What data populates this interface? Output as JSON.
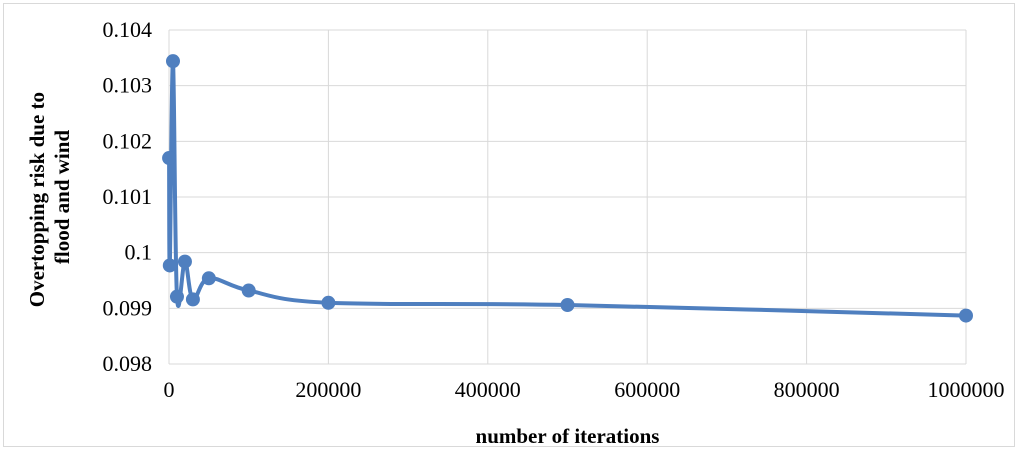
{
  "chart_data": {
    "type": "line",
    "title": "",
    "xlabel": "number of iterations",
    "ylabel_lines": [
      "Overtopping risk due to",
      "flood and wind"
    ],
    "xlim": [
      0,
      1000000
    ],
    "ylim": [
      0.098,
      0.104
    ],
    "x_ticks": [
      0,
      200000,
      400000,
      600000,
      800000,
      1000000
    ],
    "x_tick_labels": [
      "0",
      "200000",
      "400000",
      "600000",
      "800000",
      "1000000"
    ],
    "y_ticks": [
      0.098,
      0.099,
      0.1,
      0.101,
      0.102,
      0.103,
      0.104
    ],
    "y_tick_labels": [
      "0.098",
      "0.099",
      "0.1",
      "0.101",
      "0.102",
      "0.103",
      "0.104"
    ],
    "grid": true,
    "smoothed": true,
    "series": [
      {
        "color": "#4f7fbf",
        "x": [
          100,
          1000,
          5000,
          10000,
          20000,
          30000,
          50000,
          100000,
          200000,
          500000,
          1000000
        ],
        "y": [
          0.1017,
          0.09977,
          0.10344,
          0.09921,
          0.09984,
          0.09916,
          0.09954,
          0.09932,
          0.0991,
          0.09906,
          0.09887
        ]
      }
    ]
  }
}
